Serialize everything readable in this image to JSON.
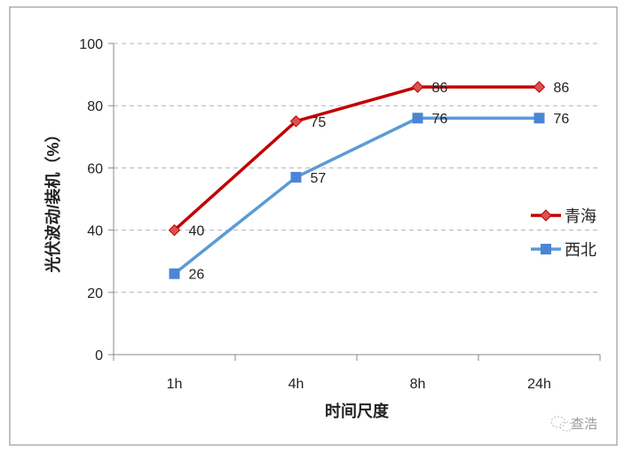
{
  "chart_data": {
    "type": "line",
    "title": "",
    "xlabel": "时间尺度",
    "ylabel": "光伏波动/装机（%）",
    "categories": [
      "1h",
      "4h",
      "8h",
      "24h"
    ],
    "ylim": [
      0,
      100
    ],
    "yticks": [
      0,
      20,
      40,
      60,
      80,
      100
    ],
    "grid": true,
    "legend_position": "right",
    "series": [
      {
        "name": "青海",
        "values": [
          40,
          75,
          86,
          86
        ],
        "color": "#c00000",
        "marker": "diamond"
      },
      {
        "name": "西北",
        "values": [
          26,
          57,
          76,
          76
        ],
        "color": "#5b9bd5",
        "marker": "square"
      }
    ]
  },
  "watermark": "查浩"
}
